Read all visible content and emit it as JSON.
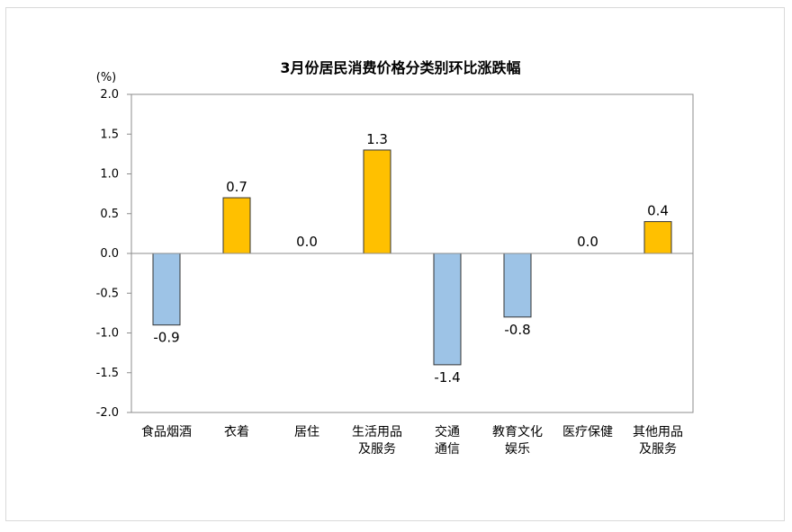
{
  "chart_data": {
    "type": "bar",
    "title": "3月份居民消费价格分类别环比涨跌幅",
    "ylabel": "(%)",
    "xlabel": "",
    "ylim": [
      -2.0,
      2.0
    ],
    "ytick_step": 0.5,
    "yticks": [
      "2.0",
      "1.5",
      "1.0",
      "0.5",
      "0.0",
      "-0.5",
      "-1.0",
      "-1.5",
      "-2.0"
    ],
    "grid": false,
    "categories": [
      [
        "食品烟酒"
      ],
      [
        "衣着"
      ],
      [
        "居住"
      ],
      [
        "生活用品",
        "及服务"
      ],
      [
        "交通",
        "通信"
      ],
      [
        "教育文化",
        "娱乐"
      ],
      [
        "医疗保健"
      ],
      [
        "其他用品",
        "及服务"
      ]
    ],
    "values": [
      -0.9,
      0.7,
      0.0,
      1.3,
      -1.4,
      -0.8,
      0.0,
      0.4
    ],
    "value_labels": [
      "-0.9",
      "0.7",
      "0.0",
      "1.3",
      "-1.4",
      "-0.8",
      "0.0",
      "0.4"
    ],
    "colors": {
      "positive": "#ffc000",
      "negative": "#9dc3e6",
      "bar_border": "#333333",
      "axis": "#8c8c8c"
    }
  }
}
